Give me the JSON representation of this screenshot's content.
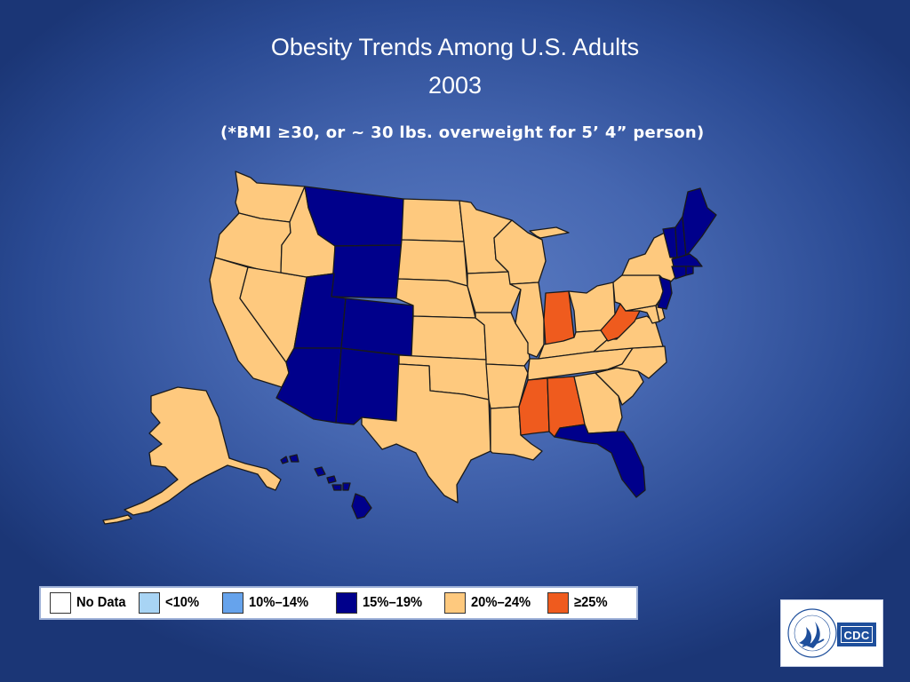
{
  "title": {
    "line1": "Obesity Trends Among U.S. Adults",
    "line2": "2003",
    "subtitle": "(*BMI ≥30, or ~ 30 lbs. overweight for 5’ 4” person)"
  },
  "colors": {
    "no_data": "#ffffff",
    "lt10": "#a8d4f4",
    "10_14": "#66a3ec",
    "15_19": "#00008b",
    "20_24": "#fec97e",
    "ge25": "#ef5b1e",
    "border": "#1a1a1a"
  },
  "legend": [
    {
      "key": "no_data",
      "label": "No Data"
    },
    {
      "key": "lt10",
      "label": "<10%"
    },
    {
      "key": "10_14",
      "label": "10%–14%"
    },
    {
      "key": "15_19",
      "label": "15%–19%"
    },
    {
      "key": "20_24",
      "label": "20%–24%"
    },
    {
      "key": "ge25",
      "label": "≥25%"
    }
  ],
  "states": {
    "WA": "20_24",
    "OR": "20_24",
    "CA": "20_24",
    "ID": "20_24",
    "NV": "20_24",
    "MT": "15_19",
    "WY": "15_19",
    "UT": "15_19",
    "CO": "15_19",
    "AZ": "15_19",
    "NM": "15_19",
    "ND": "20_24",
    "SD": "20_24",
    "NE": "20_24",
    "KS": "20_24",
    "OK": "20_24",
    "TX": "20_24",
    "MN": "20_24",
    "IA": "20_24",
    "MO": "20_24",
    "AR": "20_24",
    "LA": "20_24",
    "WI": "20_24",
    "IL": "20_24",
    "MI": "20_24",
    "IN": "ge25",
    "OH": "20_24",
    "KY": "20_24",
    "TN": "20_24",
    "MS": "ge25",
    "AL": "ge25",
    "GA": "20_24",
    "FL": "15_19",
    "SC": "20_24",
    "NC": "20_24",
    "VA": "20_24",
    "WV": "ge25",
    "MD": "20_24",
    "DE": "20_24",
    "PA": "20_24",
    "NY": "20_24",
    "NJ": "15_19",
    "CT": "15_19",
    "RI": "15_19",
    "MA": "15_19",
    "VT": "15_19",
    "NH": "15_19",
    "ME": "15_19",
    "AK": "20_24",
    "HI": "15_19"
  },
  "logo": {
    "text": "CDC",
    "seal_text": "DEPARTMENT OF HEALTH & HUMAN SERVICES USA"
  }
}
